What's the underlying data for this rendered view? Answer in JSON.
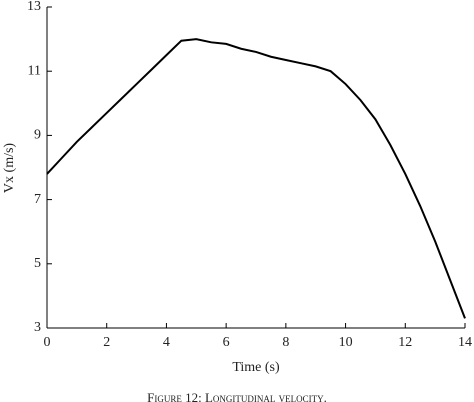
{
  "chart_data": {
    "type": "line",
    "x_label": "Time (s)",
    "y_label": "Vx (m/s)",
    "caption": "Figure 12: Longitudinal velocity.",
    "x": [
      0,
      0.5,
      1,
      1.5,
      2,
      2.5,
      3,
      3.5,
      4,
      4.5,
      5,
      5.5,
      6,
      6.5,
      7,
      7.5,
      8,
      8.5,
      9,
      9.5,
      10,
      10.5,
      11,
      11.5,
      12,
      12.5,
      13,
      13.5,
      14
    ],
    "series": [
      {
        "name": "Vx",
        "color": "#000000",
        "values": [
          7.8,
          8.3,
          8.8,
          9.25,
          9.7,
          10.15,
          10.6,
          11.05,
          11.5,
          11.95,
          12.0,
          11.9,
          11.85,
          11.7,
          11.6,
          11.45,
          11.35,
          11.25,
          11.15,
          11.0,
          10.6,
          10.1,
          9.5,
          8.7,
          7.8,
          6.8,
          5.7,
          4.5,
          3.3
        ]
      }
    ],
    "xlim": [
      0,
      14
    ],
    "xticks": [
      0,
      2,
      4,
      6,
      8,
      10,
      12,
      14
    ],
    "ylim": [
      3,
      13
    ],
    "yticks": [
      3,
      5,
      7,
      9,
      11,
      13
    ]
  }
}
